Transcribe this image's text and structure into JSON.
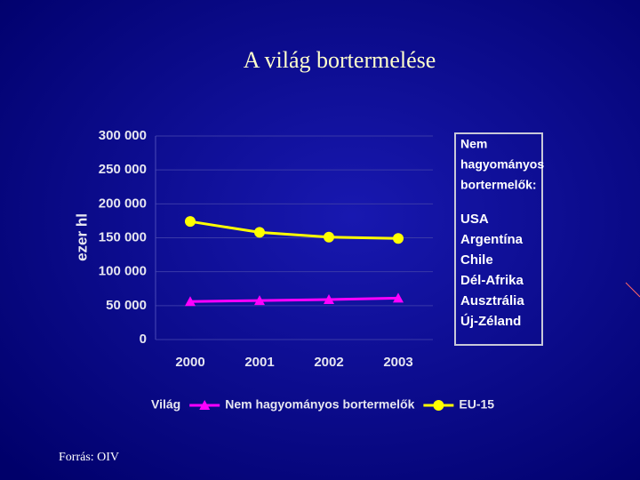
{
  "chart_data": {
    "type": "line",
    "title": "A világ bortermelése",
    "y_label": "ezer hl",
    "categories": [
      "2000",
      "2001",
      "2002",
      "2003"
    ],
    "series": [
      {
        "name": "Világ",
        "values": [
          null,
          null,
          null,
          null
        ]
      },
      {
        "name": "Nem hagyományos bortermelők",
        "color": "#ff00ff",
        "marker": "triangle",
        "values": [
          56000,
          57500,
          59000,
          61000
        ]
      },
      {
        "name": "EU-15",
        "color": "#ffff00",
        "marker": "circle",
        "values": [
          174000,
          158000,
          151000,
          149000
        ]
      }
    ],
    "ylim": [
      0,
      300000
    ],
    "yticks": [
      {
        "value": 0,
        "label": "0"
      },
      {
        "value": 50000,
        "label": "50 000"
      },
      {
        "value": 100000,
        "label": "100 000"
      },
      {
        "value": 150000,
        "label": "150 000"
      },
      {
        "value": 200000,
        "label": "200 000"
      },
      {
        "value": 250000,
        "label": "250 000"
      },
      {
        "value": 300000,
        "label": "300 000"
      }
    ],
    "grid": true,
    "note_box": {
      "heading": [
        "Nem",
        "hagyományos",
        "bortermelők:"
      ],
      "items": [
        "USA",
        "Argentína",
        "Chile",
        "Dél-Afrika",
        "Ausztrália",
        "Új-Zéland"
      ]
    },
    "source": "Forrás: OIV"
  }
}
